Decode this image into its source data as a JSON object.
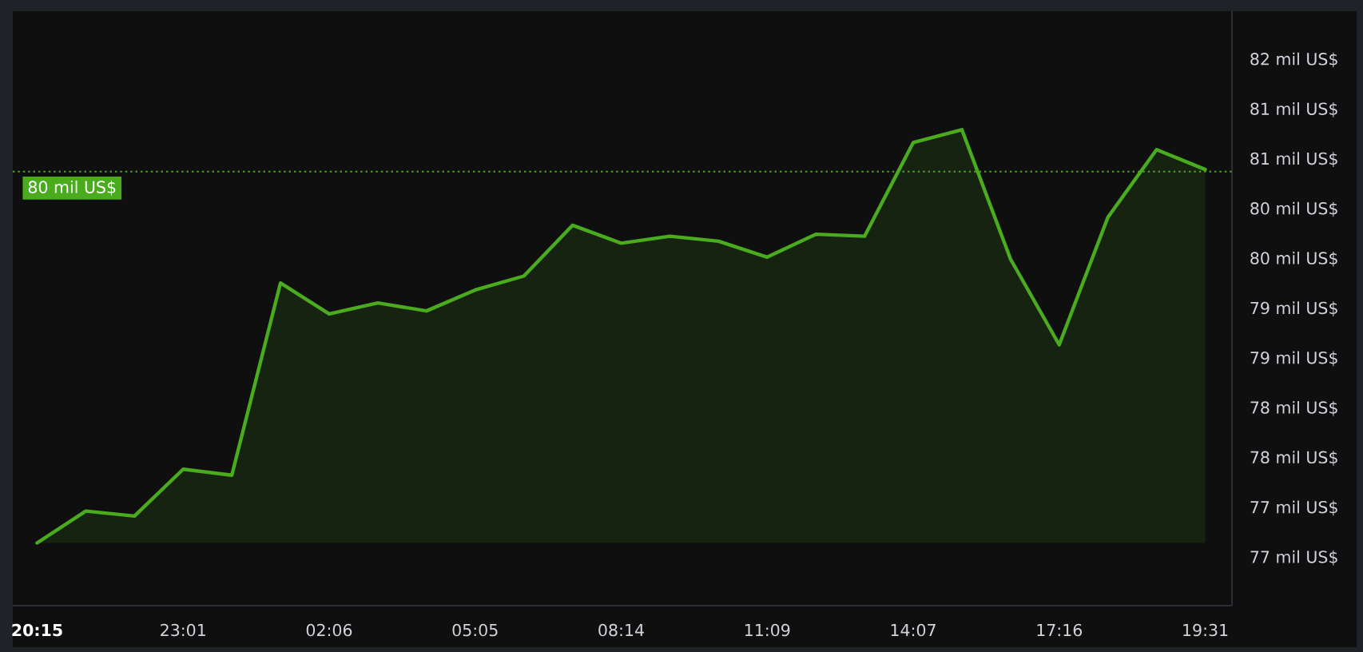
{
  "chart_data": {
    "type": "area",
    "categories": [
      "20:15",
      null,
      null,
      "23:01",
      null,
      null,
      "02:06",
      null,
      null,
      "05:05",
      null,
      null,
      "08:14",
      null,
      null,
      "11:09",
      null,
      null,
      "14:07",
      null,
      null,
      "17:16",
      null,
      null,
      "19:31"
    ],
    "series": [
      {
        "color": "#4aab1e",
        "values": [
          77.15,
          77.47,
          77.42,
          77.89,
          77.83,
          79.76,
          79.45,
          79.56,
          79.48,
          79.69,
          79.83,
          80.34,
          80.16,
          80.23,
          80.18,
          80.02,
          80.25,
          80.23,
          81.17,
          81.3,
          80.0,
          79.14,
          80.42,
          81.1,
          80.9
        ]
      }
    ],
    "ylim": [
      76.52,
      82.49
    ],
    "yticks": [
      {
        "value": 77,
        "label": "77 mil US$"
      },
      {
        "value": 77.5,
        "label": "77 mil US$"
      },
      {
        "value": 78,
        "label": "78 mil US$"
      },
      {
        "value": 78.5,
        "label": "78 mil US$"
      },
      {
        "value": 79,
        "label": "79 mil US$"
      },
      {
        "value": 79.5,
        "label": "79 mil US$"
      },
      {
        "value": 80,
        "label": "80 mil US$"
      },
      {
        "value": 80.5,
        "label": "80 mil US$"
      },
      {
        "value": 81,
        "label": "81 mil US$"
      },
      {
        "value": 81.5,
        "label": "81 mil US$"
      },
      {
        "value": 82,
        "label": "82 mil US$"
      }
    ],
    "ref_lines": [
      {
        "axis": "y",
        "value": 80.88,
        "label": "80 mil US$",
        "color": "#4aab1e",
        "line_style": "dotted"
      }
    ]
  }
}
